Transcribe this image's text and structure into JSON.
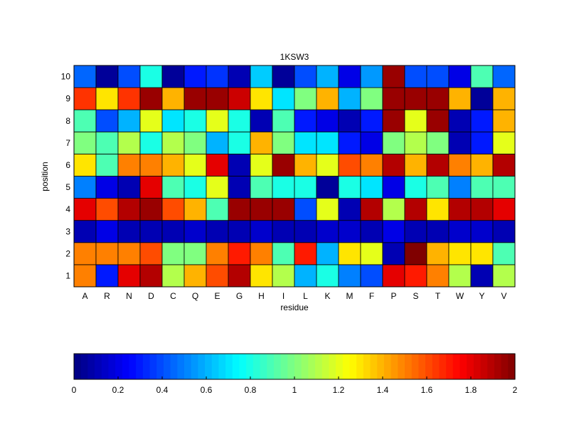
{
  "chart_data": {
    "type": "heatmap",
    "title": "1KSW3",
    "xlabel": "residue",
    "ylabel": "position",
    "x_categories": [
      "A",
      "R",
      "N",
      "D",
      "C",
      "Q",
      "E",
      "G",
      "H",
      "I",
      "L",
      "K",
      "M",
      "F",
      "P",
      "S",
      "T",
      "W",
      "Y",
      "V"
    ],
    "y_categories": [
      "1",
      "2",
      "3",
      "4",
      "5",
      "6",
      "7",
      "8",
      "9",
      "10"
    ],
    "values": [
      [
        1.5,
        0.3,
        1.8,
        1.9,
        1.1,
        1.4,
        1.6,
        1.9,
        1.3,
        1.1,
        0.6,
        0.8,
        0.5,
        0.4,
        1.8,
        1.7,
        1.5,
        1.1,
        0.1,
        1.1
      ],
      [
        1.5,
        1.5,
        1.5,
        1.6,
        1.0,
        1.0,
        1.5,
        1.7,
        1.5,
        0.9,
        1.7,
        0.6,
        1.3,
        1.2,
        0.1,
        2.0,
        1.4,
        1.3,
        1.3,
        0.9
      ],
      [
        0.1,
        0.2,
        0.1,
        0.1,
        0.1,
        0.15,
        0.1,
        0.1,
        0.15,
        0.1,
        0.1,
        0.15,
        0.15,
        0.1,
        0.2,
        0.1,
        0.1,
        0.15,
        0.15,
        0.1
      ],
      [
        1.8,
        1.6,
        1.9,
        1.95,
        1.6,
        1.4,
        0.9,
        1.95,
        1.95,
        1.95,
        0.4,
        1.2,
        0.1,
        1.9,
        1.1,
        1.9,
        1.3,
        1.9,
        1.9,
        1.8
      ],
      [
        0.5,
        0.2,
        0.1,
        1.8,
        0.9,
        0.8,
        1.2,
        0.1,
        0.9,
        0.8,
        0.8,
        0.05,
        0.8,
        0.7,
        0.2,
        0.8,
        0.9,
        0.5,
        0.9,
        0.9
      ],
      [
        1.3,
        0.9,
        1.5,
        1.5,
        1.4,
        1.2,
        1.8,
        0.1,
        1.2,
        1.95,
        1.4,
        1.2,
        1.6,
        1.5,
        1.9,
        1.4,
        1.9,
        1.5,
        1.4,
        1.9
      ],
      [
        1.0,
        0.9,
        1.1,
        0.8,
        1.1,
        1.0,
        0.6,
        0.8,
        1.4,
        1.0,
        0.7,
        0.7,
        0.3,
        0.2,
        1.0,
        1.1,
        1.0,
        0.1,
        0.3,
        1.2
      ],
      [
        0.9,
        0.4,
        0.6,
        1.2,
        0.7,
        0.8,
        1.2,
        0.8,
        0.1,
        0.9,
        0.3,
        0.2,
        0.1,
        0.3,
        1.95,
        1.2,
        1.95,
        0.1,
        0.3,
        1.4
      ],
      [
        1.65,
        1.3,
        1.65,
        1.95,
        1.4,
        1.95,
        1.95,
        1.85,
        1.3,
        0.7,
        1.0,
        1.4,
        0.6,
        1.0,
        1.95,
        1.95,
        1.95,
        1.4,
        0.05,
        1.4
      ],
      [
        0.45,
        0.05,
        0.4,
        0.8,
        0.05,
        0.3,
        0.35,
        0.1,
        0.65,
        0.05,
        0.4,
        0.6,
        0.2,
        0.55,
        1.95,
        0.4,
        0.4,
        0.2,
        0.9,
        0.45
      ]
    ],
    "colorbar": {
      "min": 0,
      "max": 2,
      "ticks": [
        "0",
        "0.2",
        "0.4",
        "0.6",
        "0.8",
        "1",
        "1.2",
        "1.4",
        "1.6",
        "1.8",
        "2"
      ]
    },
    "colormap": "jet",
    "grid": true
  }
}
